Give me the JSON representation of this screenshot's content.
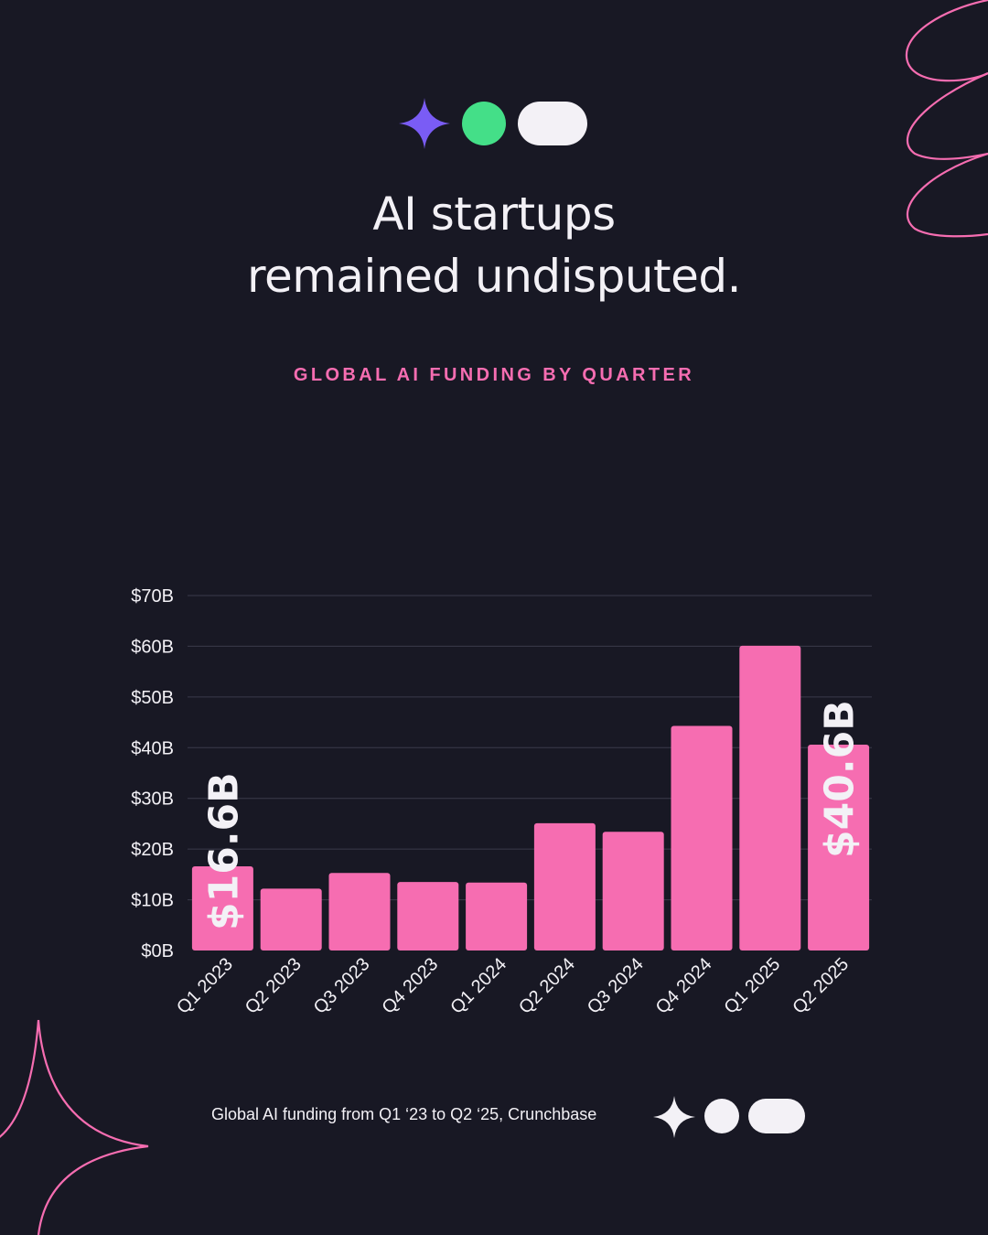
{
  "headline": {
    "line1": "AI startups",
    "line2": "remained undisputed."
  },
  "subtitle": "GLOBAL AI FUNDING BY QUARTER",
  "footer": {
    "caption": "Global AI funding from Q1 ‘23 to Q2 ‘25, Crunchbase"
  },
  "colors": {
    "background": "#181824",
    "bar": "#f66db1",
    "accent_pink": "#f66db1",
    "accent_purple": "#7a5cf5",
    "accent_green": "#44df88",
    "light": "#f3f1f6",
    "grid": "#3a3a4a"
  },
  "icons": {
    "top": [
      "four-point-star-icon",
      "circle-icon",
      "pill-icon"
    ],
    "bottom": [
      "four-point-star-icon",
      "circle-icon",
      "pill-icon"
    ]
  },
  "chart_data": {
    "type": "bar",
    "title": "",
    "xlabel": "",
    "ylabel": "",
    "categories": [
      "Q1 2023",
      "Q2 2023",
      "Q3 2023",
      "Q4 2023",
      "Q1 2024",
      "Q2 2024",
      "Q3 2024",
      "Q4 2024",
      "Q1 2025",
      "Q2 2025"
    ],
    "values": [
      16.6,
      12.2,
      15.3,
      13.5,
      13.4,
      25.1,
      23.4,
      44.3,
      60.1,
      40.6
    ],
    "unit": "$B",
    "ylim": [
      0,
      70
    ],
    "yticks": [
      0,
      10,
      20,
      30,
      40,
      50,
      60,
      70
    ],
    "ytick_labels": [
      "$0B",
      "$10B",
      "$20B",
      "$30B",
      "$40B",
      "$50B",
      "$60B",
      "$70B"
    ],
    "grid": true,
    "legend": "none",
    "annotations": [
      {
        "category": "Q1 2023",
        "text": "$16.6B"
      },
      {
        "category": "Q2 2025",
        "text": "$40.6B"
      }
    ]
  }
}
